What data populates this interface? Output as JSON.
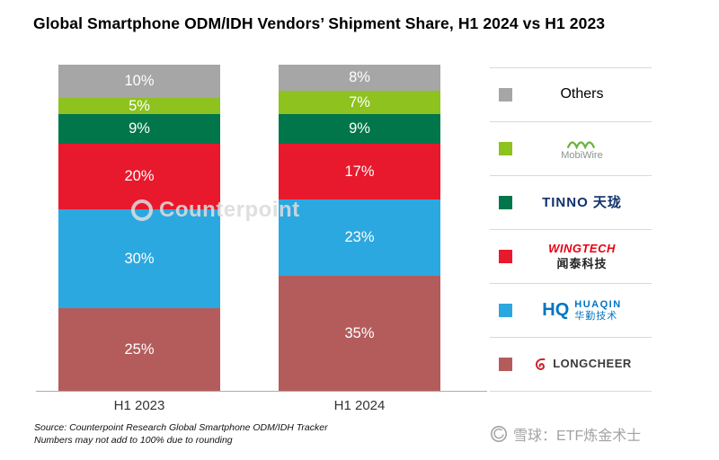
{
  "title": "Global Smartphone ODM/IDH Vendors’ Shipment Share, H1 2024 vs H1 2023",
  "chart_data": {
    "type": "bar",
    "stacked": true,
    "title": "Global Smartphone ODM/IDH Vendors’ Shipment Share, H1 2024 vs H1 2023",
    "categories": [
      "H1 2023",
      "H1 2024"
    ],
    "series": [
      {
        "name": "Longcheer",
        "color": "#b45c5c",
        "values": [
          25,
          35
        ]
      },
      {
        "name": "Huaqin",
        "color": "#2ba8e0",
        "values": [
          30,
          23
        ]
      },
      {
        "name": "Wingtech",
        "color": "#e8192c",
        "values": [
          20,
          17
        ]
      },
      {
        "name": "Tinno",
        "color": "#00764a",
        "values": [
          9,
          9
        ]
      },
      {
        "name": "MobiWire",
        "color": "#8dc21f",
        "values": [
          5,
          7
        ]
      },
      {
        "name": "Others",
        "color": "#a6a6a6",
        "values": [
          10,
          8
        ]
      }
    ],
    "value_suffix": "%",
    "ylim": [
      0,
      100
    ],
    "grid": false,
    "legend_position": "right"
  },
  "legend": {
    "items": [
      {
        "id": "others",
        "label": "Others"
      },
      {
        "id": "mobiwire",
        "label": "MobiWire"
      },
      {
        "id": "tinno",
        "label": "TINNO 天珑"
      },
      {
        "id": "wingtech",
        "label": "WINGTECH",
        "label2": "闻泰科技"
      },
      {
        "id": "huaqin",
        "label": "HQ",
        "label2": "HUAQIN",
        "label3": "华勤技术"
      },
      {
        "id": "longcheer",
        "label": "LONGCHEER"
      }
    ]
  },
  "watermark": {
    "text": "Counterpoint"
  },
  "footer": {
    "line1": "Source: Counterpoint Research Global Smartphone ODM/IDH Tracker",
    "line2": "Numbers may not add to 100% due to rounding"
  },
  "branding": {
    "text": "雪球：ETF炼金术士"
  }
}
